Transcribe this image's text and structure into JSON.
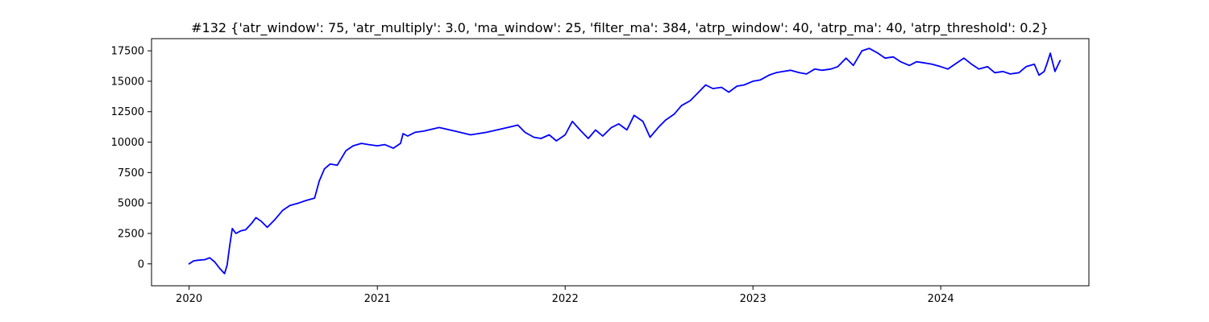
{
  "chart_data": {
    "type": "line",
    "title": "#132 {'atr_window': 75, 'atr_multiply': 3.0, 'ma_window': 25, 'filter_ma': 384, 'atrp_window': 40, 'atrp_ma': 40, 'atrp_threshold': 0.2}",
    "xlabel": "",
    "ylabel": "",
    "xlim": [
      "2019-10-20",
      "2024-10-15"
    ],
    "ylim": [
      -1800,
      18500
    ],
    "x_ticks": [
      "2020-01-01",
      "2021-01-01",
      "2022-01-01",
      "2023-01-01",
      "2024-01-01"
    ],
    "x_tick_labels": [
      "2020",
      "2021",
      "2022",
      "2023",
      "2024"
    ],
    "y_ticks": [
      0,
      2500,
      5000,
      7500,
      10000,
      12500,
      15000,
      17500
    ],
    "y_tick_labels": [
      "0",
      "2500",
      "5000",
      "7500",
      "10000",
      "12500",
      "15000",
      "17500"
    ],
    "grid": false,
    "color": "#0000ff",
    "series": [
      {
        "x": [
          "2020-01-01",
          "2020-01-10",
          "2020-01-20",
          "2020-02-01",
          "2020-02-10",
          "2020-02-20",
          "2020-03-01",
          "2020-03-10",
          "2020-03-15",
          "2020-03-20",
          "2020-03-25",
          "2020-04-01",
          "2020-04-10",
          "2020-04-20",
          "2020-05-01",
          "2020-05-10",
          "2020-05-20",
          "2020-06-01",
          "2020-06-15",
          "2020-07-01",
          "2020-07-15",
          "2020-08-01",
          "2020-08-15",
          "2020-09-01",
          "2020-09-10",
          "2020-09-20",
          "2020-10-01",
          "2020-10-15",
          "2020-11-01",
          "2020-11-15",
          "2020-12-01",
          "2020-12-15",
          "2021-01-01",
          "2021-01-15",
          "2021-02-01",
          "2021-02-15",
          "2021-02-20",
          "2021-03-01",
          "2021-03-15",
          "2021-04-01",
          "2021-05-01",
          "2021-06-01",
          "2021-07-01",
          "2021-08-01",
          "2021-09-01",
          "2021-10-01",
          "2021-10-15",
          "2021-11-01",
          "2021-11-15",
          "2021-12-01",
          "2021-12-15",
          "2022-01-01",
          "2022-01-15",
          "2022-02-01",
          "2022-02-15",
          "2022-03-01",
          "2022-03-15",
          "2022-04-01",
          "2022-04-15",
          "2022-05-01",
          "2022-05-15",
          "2022-06-01",
          "2022-06-15",
          "2022-07-01",
          "2022-07-15",
          "2022-08-01",
          "2022-08-15",
          "2022-09-01",
          "2022-09-15",
          "2022-10-01",
          "2022-10-15",
          "2022-11-01",
          "2022-11-15",
          "2022-12-01",
          "2022-12-15",
          "2023-01-01",
          "2023-01-15",
          "2023-02-01",
          "2023-02-15",
          "2023-03-01",
          "2023-03-15",
          "2023-04-01",
          "2023-04-15",
          "2023-05-01",
          "2023-05-15",
          "2023-06-01",
          "2023-06-15",
          "2023-07-01",
          "2023-07-15",
          "2023-08-01",
          "2023-08-15",
          "2023-09-01",
          "2023-09-15",
          "2023-10-01",
          "2023-10-15",
          "2023-11-01",
          "2023-11-15",
          "2023-12-01",
          "2023-12-15",
          "2024-01-01",
          "2024-01-15",
          "2024-02-01",
          "2024-02-15",
          "2024-03-01",
          "2024-03-15",
          "2024-04-01",
          "2024-04-15",
          "2024-05-01",
          "2024-05-15",
          "2024-06-01",
          "2024-06-15",
          "2024-07-01",
          "2024-07-10",
          "2024-07-20",
          "2024-07-25",
          "2024-08-01",
          "2024-08-10",
          "2024-08-20"
        ],
        "y": [
          0,
          250,
          300,
          350,
          500,
          150,
          -400,
          -800,
          -100,
          1500,
          2900,
          2500,
          2700,
          2800,
          3300,
          3800,
          3500,
          3000,
          3600,
          4400,
          4800,
          5000,
          5200,
          5400,
          6800,
          7800,
          8200,
          8100,
          9300,
          9700,
          9900,
          9800,
          9700,
          9800,
          9500,
          9900,
          10700,
          10500,
          10800,
          10900,
          11200,
          10900,
          10600,
          10800,
          11100,
          11400,
          10800,
          10400,
          10300,
          10600,
          10100,
          10600,
          11700,
          10900,
          10300,
          11000,
          10500,
          11200,
          11500,
          11000,
          12200,
          11700,
          10400,
          11200,
          11800,
          12300,
          13000,
          13400,
          14000,
          14700,
          14400,
          14500,
          14100,
          14600,
          14700,
          15000,
          15100,
          15500,
          15700,
          15800,
          15900,
          15700,
          15600,
          16000,
          15900,
          16000,
          16200,
          16900,
          16300,
          17500,
          17700,
          17300,
          16900,
          17000,
          16600,
          16300,
          16600,
          16500,
          16400,
          16200,
          16000,
          16500,
          16900,
          16400,
          16000,
          16200,
          15700,
          15800,
          15600,
          15700,
          16200,
          16400,
          15500,
          15800,
          16400,
          17300,
          15800,
          16700
        ]
      }
    ]
  }
}
